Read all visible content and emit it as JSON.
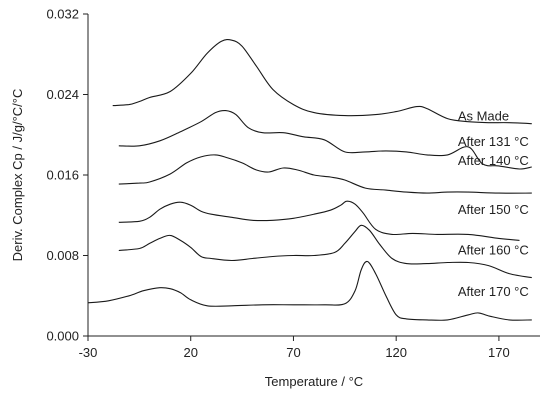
{
  "chart_data": {
    "type": "line",
    "title": "",
    "xlabel": "Temperature / °C",
    "ylabel": "Deriv. Complex Cp / J/g/°C/°C",
    "xlim": [
      -30,
      190
    ],
    "ylim": [
      0,
      0.032
    ],
    "x_ticks": [
      -30,
      20,
      70,
      120,
      170
    ],
    "x_tick_labels": [
      "-30",
      "20",
      "70",
      "120",
      "170"
    ],
    "y_ticks": [
      0,
      0.008,
      0.016,
      0.024,
      0.032
    ],
    "y_tick_labels": [
      "0.000",
      "0.008",
      "0.016",
      "0.024",
      "0.032"
    ],
    "grid": false,
    "legend": "none",
    "series": [
      {
        "name": "As Made",
        "label_anchor": [
          150,
          0.0214
        ],
        "points": [
          [
            -18,
            0.0229
          ],
          [
            -10,
            0.023
          ],
          [
            -5,
            0.0233
          ],
          [
            0,
            0.0237
          ],
          [
            10,
            0.0243
          ],
          [
            20,
            0.0261
          ],
          [
            28,
            0.0281
          ],
          [
            35,
            0.0293
          ],
          [
            40,
            0.0294
          ],
          [
            45,
            0.0288
          ],
          [
            52,
            0.0268
          ],
          [
            60,
            0.0245
          ],
          [
            70,
            0.023
          ],
          [
            80,
            0.0222
          ],
          [
            95,
            0.0219
          ],
          [
            110,
            0.022
          ],
          [
            120,
            0.0223
          ],
          [
            130,
            0.0228
          ],
          [
            135,
            0.0226
          ],
          [
            145,
            0.0216
          ],
          [
            155,
            0.0213
          ],
          [
            165,
            0.0212
          ],
          [
            175,
            0.0212
          ],
          [
            186,
            0.0211
          ]
        ]
      },
      {
        "name": "After 131 °C",
        "label_anchor": [
          150,
          0.0189
        ],
        "points": [
          [
            -15,
            0.0189
          ],
          [
            -5,
            0.0189
          ],
          [
            5,
            0.0194
          ],
          [
            15,
            0.0203
          ],
          [
            25,
            0.0213
          ],
          [
            32,
            0.0222
          ],
          [
            37,
            0.0224
          ],
          [
            42,
            0.022
          ],
          [
            48,
            0.0207
          ],
          [
            55,
            0.0202
          ],
          [
            65,
            0.0202
          ],
          [
            75,
            0.0198
          ],
          [
            85,
            0.0195
          ],
          [
            95,
            0.0183
          ],
          [
            105,
            0.0183
          ],
          [
            115,
            0.0184
          ],
          [
            125,
            0.0183
          ],
          [
            135,
            0.018
          ],
          [
            145,
            0.018
          ],
          [
            155,
            0.0188
          ],
          [
            162,
            0.0171
          ],
          [
            170,
            0.0169
          ],
          [
            180,
            0.0166
          ],
          [
            186,
            0.0168
          ]
        ]
      },
      {
        "name": "After 140 °C",
        "label_anchor": [
          150,
          0.017
        ],
        "points": [
          [
            -15,
            0.0151
          ],
          [
            -5,
            0.0152
          ],
          [
            0,
            0.0153
          ],
          [
            10,
            0.0161
          ],
          [
            18,
            0.0172
          ],
          [
            25,
            0.0178
          ],
          [
            32,
            0.018
          ],
          [
            38,
            0.0177
          ],
          [
            45,
            0.0172
          ],
          [
            52,
            0.0165
          ],
          [
            58,
            0.0163
          ],
          [
            65,
            0.0167
          ],
          [
            72,
            0.0165
          ],
          [
            80,
            0.016
          ],
          [
            88,
            0.0158
          ],
          [
            95,
            0.0155
          ],
          [
            105,
            0.0147
          ],
          [
            115,
            0.0145
          ],
          [
            125,
            0.0143
          ],
          [
            135,
            0.0142
          ],
          [
            145,
            0.0143
          ],
          [
            155,
            0.0143
          ],
          [
            170,
            0.0142
          ],
          [
            186,
            0.0142
          ]
        ]
      },
      {
        "name": "After 150 °C",
        "label_anchor": [
          150,
          0.0121
        ],
        "points": [
          [
            -15,
            0.0113
          ],
          [
            -5,
            0.0114
          ],
          [
            0,
            0.0118
          ],
          [
            5,
            0.0126
          ],
          [
            10,
            0.0131
          ],
          [
            15,
            0.0133
          ],
          [
            20,
            0.013
          ],
          [
            25,
            0.0124
          ],
          [
            30,
            0.0121
          ],
          [
            40,
            0.0118
          ],
          [
            50,
            0.0115
          ],
          [
            60,
            0.0115
          ],
          [
            70,
            0.0117
          ],
          [
            80,
            0.0121
          ],
          [
            88,
            0.0125
          ],
          [
            93,
            0.013
          ],
          [
            96,
            0.0134
          ],
          [
            100,
            0.0131
          ],
          [
            104,
            0.0122
          ],
          [
            110,
            0.0106
          ],
          [
            118,
            0.0101
          ],
          [
            128,
            0.0102
          ],
          [
            140,
            0.0101
          ],
          [
            155,
            0.0101
          ],
          [
            170,
            0.0097
          ],
          [
            180,
            0.0095
          ]
        ]
      },
      {
        "name": "After 160 °C",
        "label_anchor": [
          150,
          0.0081
        ],
        "points": [
          [
            -15,
            0.0085
          ],
          [
            -5,
            0.0087
          ],
          [
            0,
            0.0092
          ],
          [
            5,
            0.0097
          ],
          [
            10,
            0.01
          ],
          [
            15,
            0.0095
          ],
          [
            20,
            0.0088
          ],
          [
            25,
            0.0079
          ],
          [
            30,
            0.0077
          ],
          [
            40,
            0.0075
          ],
          [
            50,
            0.0077
          ],
          [
            60,
            0.0079
          ],
          [
            70,
            0.008
          ],
          [
            80,
            0.008
          ],
          [
            90,
            0.0083
          ],
          [
            95,
            0.0092
          ],
          [
            100,
            0.0104
          ],
          [
            103,
            0.011
          ],
          [
            107,
            0.0105
          ],
          [
            112,
            0.0091
          ],
          [
            118,
            0.0077
          ],
          [
            125,
            0.0072
          ],
          [
            135,
            0.0072
          ],
          [
            145,
            0.0073
          ],
          [
            155,
            0.0073
          ],
          [
            165,
            0.007
          ],
          [
            175,
            0.0062
          ],
          [
            186,
            0.0058
          ]
        ]
      },
      {
        "name": "After 170 °C",
        "label_anchor": [
          150,
          0.004
        ],
        "points": [
          [
            -30,
            0.0033
          ],
          [
            -20,
            0.0035
          ],
          [
            -10,
            0.004
          ],
          [
            -3,
            0.0045
          ],
          [
            5,
            0.0048
          ],
          [
            10,
            0.0047
          ],
          [
            15,
            0.0043
          ],
          [
            20,
            0.0036
          ],
          [
            28,
            0.003
          ],
          [
            40,
            0.003
          ],
          [
            55,
            0.0031
          ],
          [
            70,
            0.0031
          ],
          [
            85,
            0.0031
          ],
          [
            95,
            0.0032
          ],
          [
            100,
            0.0045
          ],
          [
            103,
            0.0066
          ],
          [
            106,
            0.0074
          ],
          [
            110,
            0.0062
          ],
          [
            115,
            0.004
          ],
          [
            120,
            0.0021
          ],
          [
            125,
            0.0017
          ],
          [
            135,
            0.0016
          ],
          [
            145,
            0.0016
          ],
          [
            155,
            0.0021
          ],
          [
            160,
            0.0023
          ],
          [
            165,
            0.002
          ],
          [
            175,
            0.0016
          ],
          [
            186,
            0.0016
          ]
        ]
      }
    ]
  }
}
